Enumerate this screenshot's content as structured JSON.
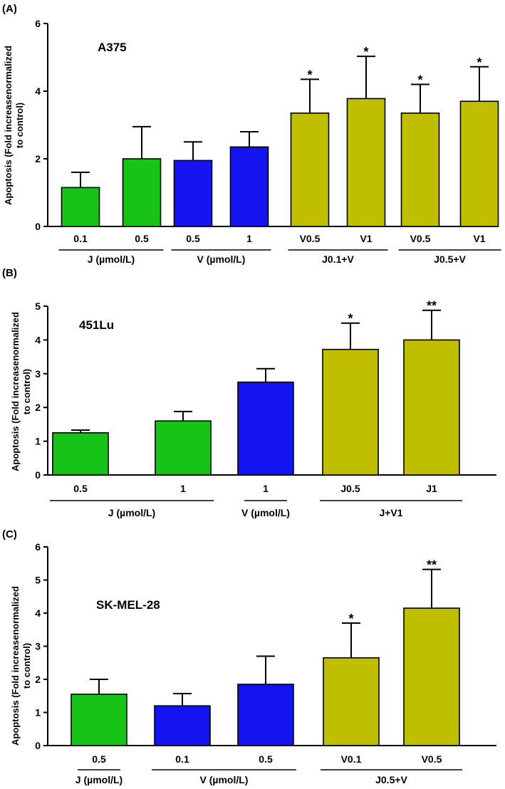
{
  "colors": {
    "green": "#16c316",
    "blue": "#1414f0",
    "olive": "#bfbf00",
    "axis": "#000000"
  },
  "chart_data": [
    {
      "type": "bar",
      "panel": "(A)",
      "cell_line": "A375",
      "ylabel_line1": "Apoptosis (Fold increasenormalized",
      "ylabel_line2": "to control)",
      "ylim": [
        0,
        6
      ],
      "yticks": [
        "0",
        "2",
        "4",
        "6"
      ],
      "bars": [
        {
          "label": "0.1",
          "value": 1.15,
          "error": 0.45,
          "color": "green",
          "sig": ""
        },
        {
          "label": "0.5",
          "value": 2.0,
          "error": 0.95,
          "color": "green",
          "sig": ""
        },
        {
          "label": "0.5",
          "value": 1.95,
          "error": 0.55,
          "color": "blue",
          "sig": ""
        },
        {
          "label": "1",
          "value": 2.35,
          "error": 0.45,
          "color": "blue",
          "sig": ""
        },
        {
          "label": "V0.5",
          "value": 3.35,
          "error": 1.0,
          "color": "olive",
          "sig": "*"
        },
        {
          "label": "V1",
          "value": 3.78,
          "error": 1.25,
          "color": "olive",
          "sig": "*"
        },
        {
          "label": "V0.5",
          "value": 3.35,
          "error": 0.85,
          "color": "olive",
          "sig": "*"
        },
        {
          "label": "V1",
          "value": 3.7,
          "error": 1.02,
          "color": "olive",
          "sig": "*"
        }
      ],
      "groups": [
        {
          "label": "J (µmol/L)",
          "from": 0,
          "to": 1
        },
        {
          "label": "V (µmol/L)",
          "from": 2,
          "to": 3
        },
        {
          "label": "J0.1+V",
          "from": 4,
          "to": 5
        },
        {
          "label": "J0.5+V",
          "from": 6,
          "to": 7
        }
      ]
    },
    {
      "type": "bar",
      "panel": "(B)",
      "cell_line": "451Lu",
      "ylabel_line1": "Apoptosis (Fold increasenormalized",
      "ylabel_line2": "to control)",
      "ylim": [
        0,
        5
      ],
      "yticks": [
        "0",
        "1",
        "2",
        "3",
        "4",
        "5"
      ],
      "bars": [
        {
          "label": "0.5",
          "value": 1.25,
          "error": 0.08,
          "color": "green",
          "sig": ""
        },
        {
          "label": "1",
          "value": 1.6,
          "error": 0.28,
          "color": "green",
          "sig": ""
        },
        {
          "label": "1",
          "value": 2.75,
          "error": 0.4,
          "color": "blue",
          "sig": ""
        },
        {
          "label": "J0.5",
          "value": 3.72,
          "error": 0.78,
          "color": "olive",
          "sig": "*"
        },
        {
          "label": "J1",
          "value": 4.0,
          "error": 0.88,
          "color": "olive",
          "sig": "**"
        }
      ],
      "groups": [
        {
          "label": "J (µmol/L)",
          "from": 0,
          "to": 1
        },
        {
          "label": "V (µmol/L)",
          "from": 2,
          "to": 2
        },
        {
          "label": "J+V1",
          "from": 3,
          "to": 4
        }
      ]
    },
    {
      "type": "bar",
      "panel": "(C)",
      "cell_line": "SK-MEL-28",
      "ylabel_line1": "Apoptosis (Fold increasenormalized",
      "ylabel_line2": "to control)",
      "ylim": [
        0,
        6
      ],
      "yticks": [
        "0",
        "1",
        "2",
        "3",
        "4",
        "5",
        "6"
      ],
      "bars": [
        {
          "label": "0.5",
          "value": 1.55,
          "error": 0.45,
          "color": "green",
          "sig": ""
        },
        {
          "label": "0.1",
          "value": 1.2,
          "error": 0.37,
          "color": "blue",
          "sig": ""
        },
        {
          "label": "0.5",
          "value": 1.85,
          "error": 0.85,
          "color": "blue",
          "sig": ""
        },
        {
          "label": "V0.1",
          "value": 2.65,
          "error": 1.05,
          "color": "olive",
          "sig": "*"
        },
        {
          "label": "V0.5",
          "value": 4.15,
          "error": 1.17,
          "color": "olive",
          "sig": "**"
        }
      ],
      "groups": [
        {
          "label": "J (µmol/L)",
          "from": 0,
          "to": 0
        },
        {
          "label": "V (µmol/L)",
          "from": 1,
          "to": 2
        },
        {
          "label": "J0.5+V",
          "from": 3,
          "to": 4
        }
      ]
    }
  ]
}
